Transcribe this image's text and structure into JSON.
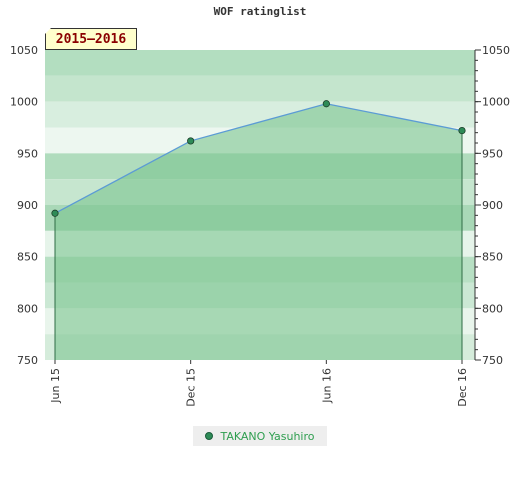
{
  "chart_data": {
    "type": "line",
    "title": "WOF ratinglist",
    "badge": "2015–2016",
    "categories": [
      "Jun 15",
      "Dec 15",
      "Jun 16",
      "Dec 16"
    ],
    "series": [
      {
        "name": "TAKANO Yasuhiro",
        "values": [
          892,
          962,
          998,
          972
        ],
        "color": "#2e8b57"
      }
    ],
    "ylim": [
      750,
      1050
    ],
    "yticks": [
      750,
      800,
      850,
      900,
      950,
      1000,
      1050
    ],
    "left_axis": true,
    "right_axis": true,
    "legend_position": "bottom-center",
    "fill_color": "#7cc48f",
    "line_color": "#5b9bd5"
  }
}
